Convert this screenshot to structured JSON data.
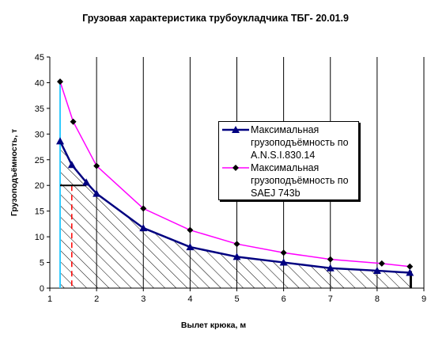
{
  "chart_data": {
    "type": "line",
    "title": "Грузовая характеристика трубоукладчика ТБГ- 20.01.9",
    "xlabel": "Вылет крюка, м",
    "ylabel": "Грузоподъёмность, т",
    "xlim": [
      1,
      9
    ],
    "ylim": [
      0,
      45
    ],
    "x_ticks": [
      1,
      2,
      3,
      4,
      5,
      6,
      7,
      8,
      9
    ],
    "y_ticks": [
      0,
      5,
      10,
      15,
      20,
      25,
      30,
      35,
      40,
      45
    ],
    "grid": "vertical",
    "legend_position": "center-right",
    "colors": {
      "series_1": "#000080",
      "series_2": "#ff00ff",
      "vertical_line": "#33ccff",
      "dashed_line": "#ff0000",
      "hatch": "#000000"
    },
    "series": [
      {
        "name": "Максимальная грузоподъёмность по A.N.S.I.830.14",
        "marker": "triangle",
        "x": [
          1.22,
          1.47,
          1.78,
          2.0,
          3.0,
          4.0,
          5.0,
          6.0,
          7.0,
          8.0,
          8.7
        ],
        "y": [
          28.6,
          24.0,
          20.6,
          18.4,
          11.7,
          8.0,
          6.1,
          5.0,
          3.9,
          3.4,
          3.0
        ]
      },
      {
        "name": "Максимальная грузоподъёмность по SAEJ 743b",
        "marker": "diamond",
        "x": [
          1.22,
          1.5,
          2.0,
          3.0,
          4.0,
          5.0,
          6.0,
          7.0,
          8.1,
          8.7
        ],
        "y": [
          40.2,
          32.4,
          23.8,
          15.5,
          11.3,
          8.6,
          6.9,
          5.6,
          4.8,
          4.2
        ]
      }
    ],
    "reference_lines": {
      "vertical_x": 1.22,
      "dashed_x": 1.47,
      "dashed_y_top": 20.0,
      "horizontal_y": 20.0,
      "horizontal_x_range": [
        1.22,
        1.78
      ],
      "right_x": 8.72
    }
  }
}
